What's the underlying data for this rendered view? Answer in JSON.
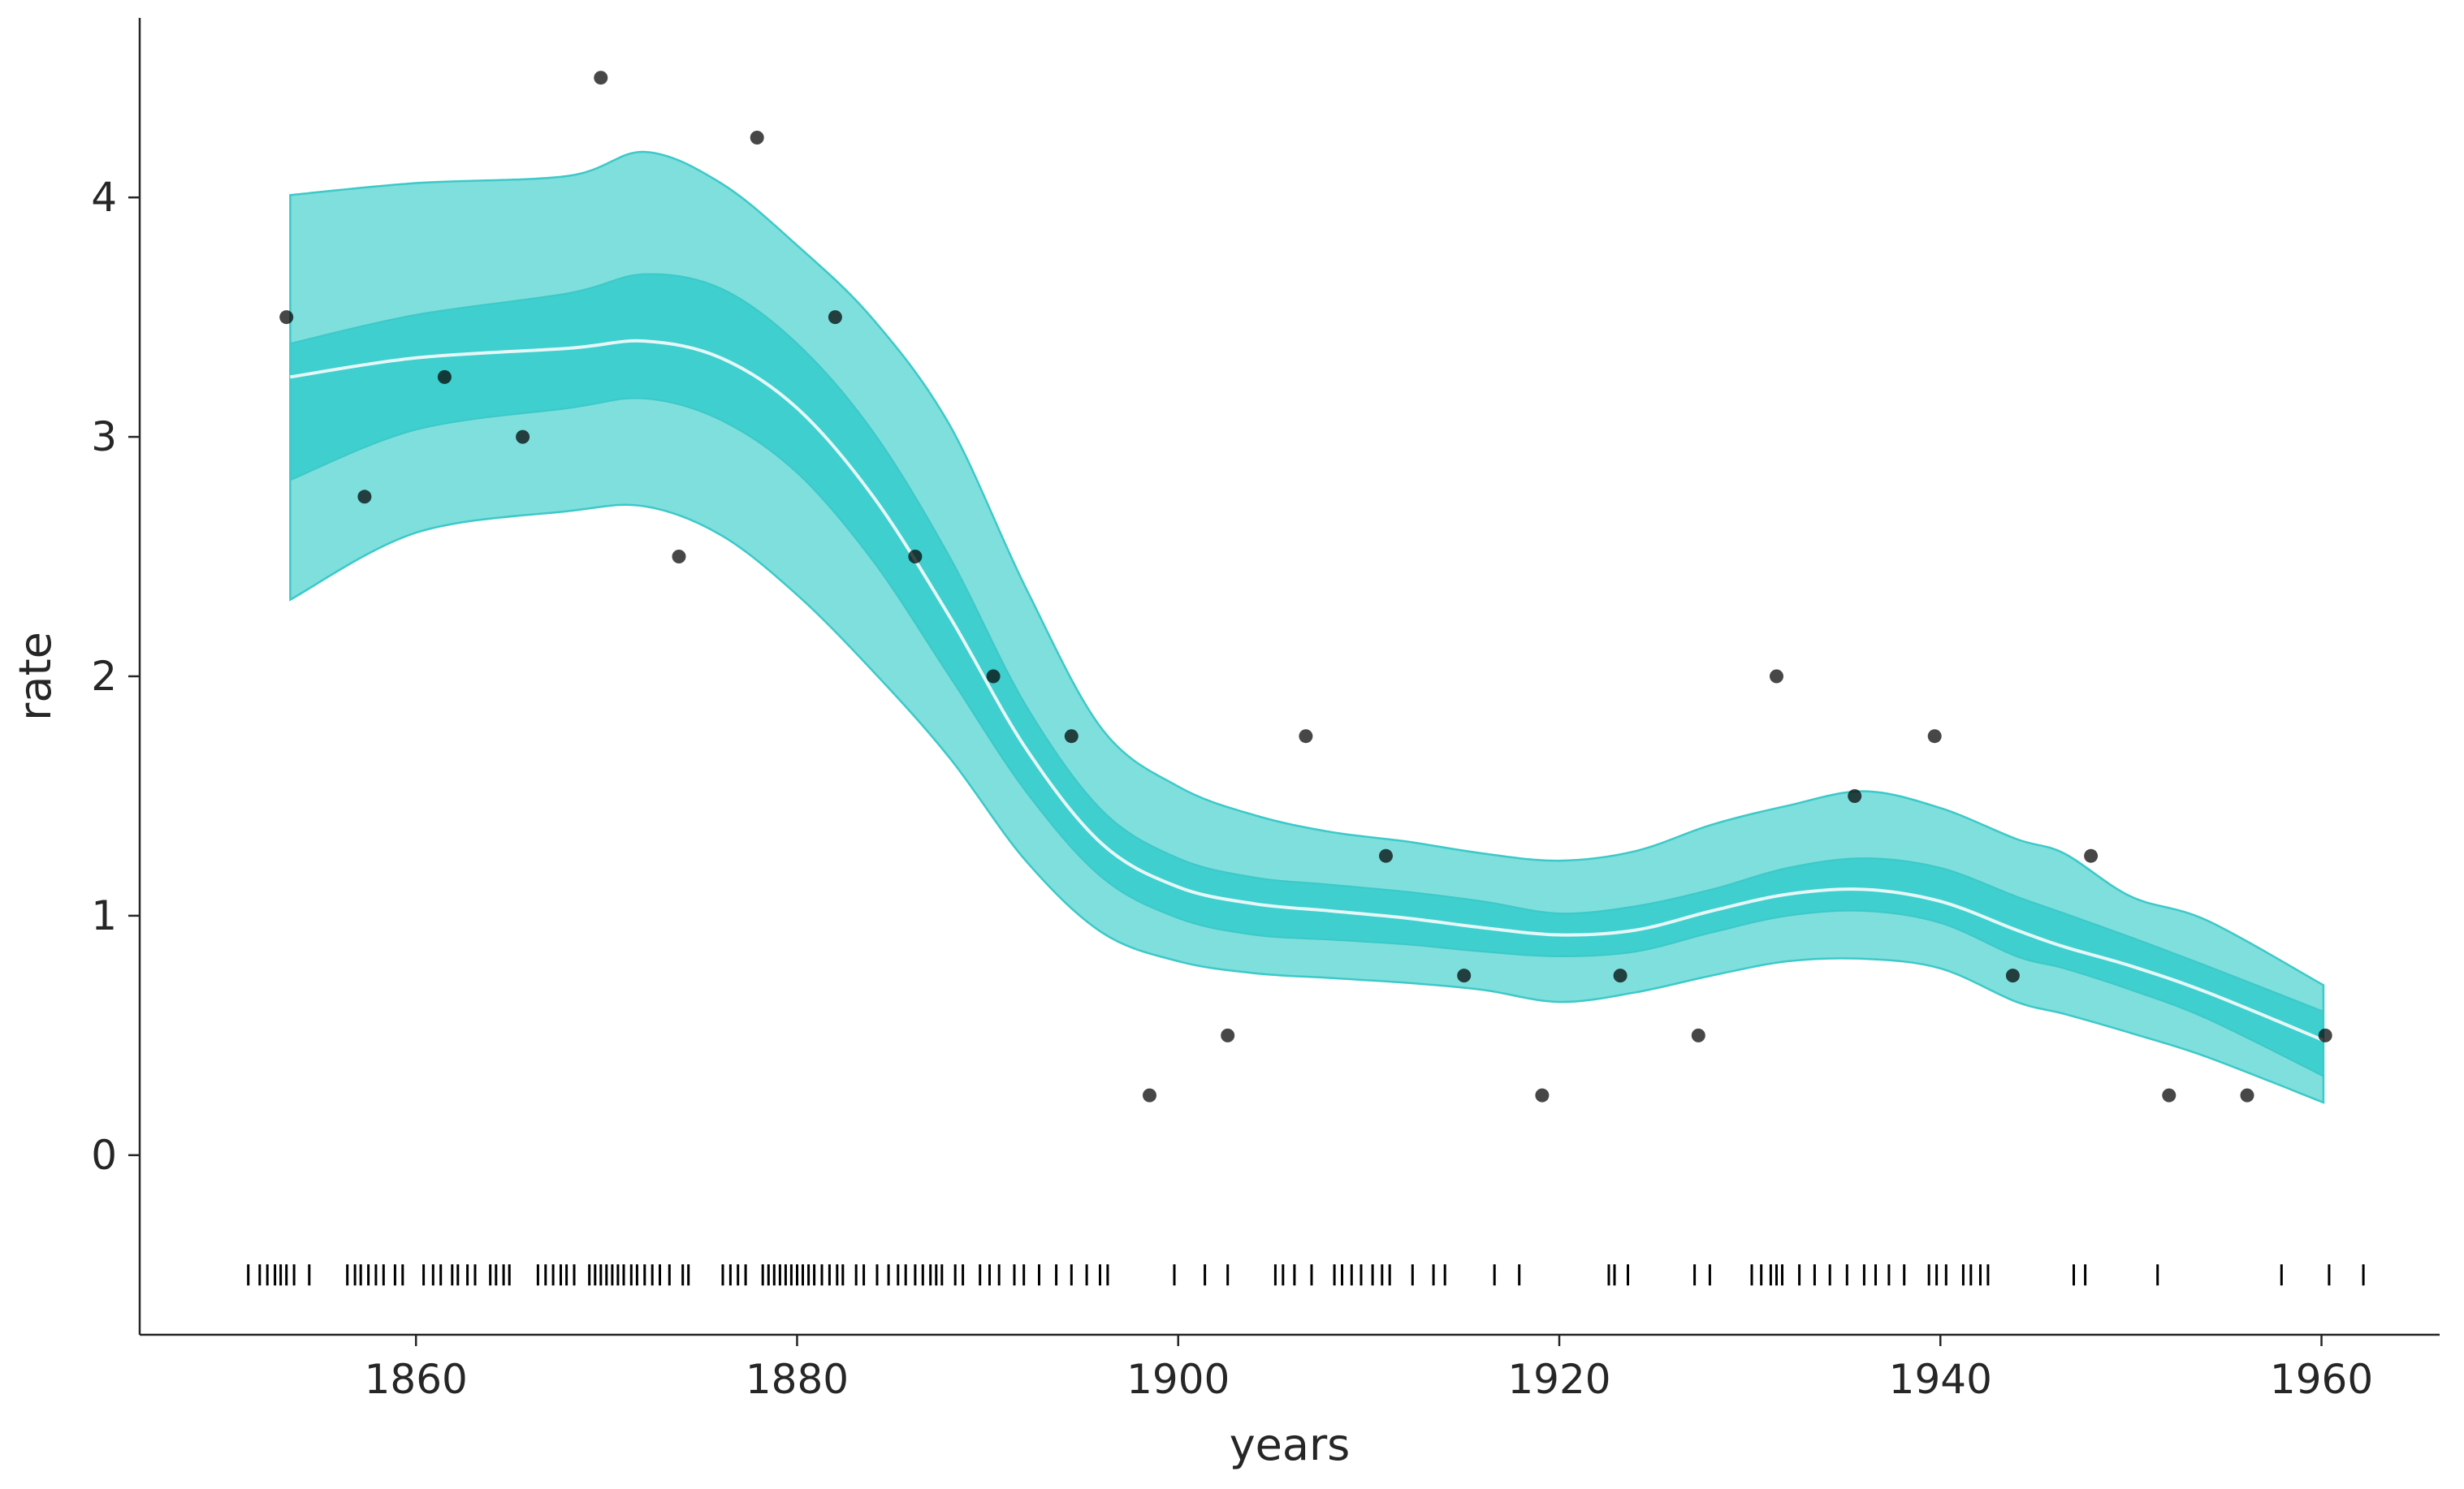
{
  "chart_data": {
    "type": "line",
    "title": "",
    "xlabel": "years",
    "ylabel": "rate",
    "xlim": [
      1845.5,
      1966.2
    ],
    "ylim": [
      -0.75,
      4.75
    ],
    "x_ticks": [
      1860,
      1880,
      1900,
      1920,
      1940,
      1960
    ],
    "y_ticks": [
      0,
      1,
      2,
      3,
      4
    ],
    "grid": false,
    "legend": "none",
    "colors": {
      "band_outer": "#7fdfdd",
      "band_inner": "#3ecfce",
      "band_edge": "#3cc9c8",
      "mean_line": "#e6f7f7",
      "points": "#000000",
      "rug": "#000000",
      "axis": "#262626"
    },
    "mean_curve": {
      "x": [
        1853.4,
        1860,
        1868,
        1872,
        1876,
        1880,
        1884,
        1888,
        1892,
        1896,
        1900,
        1904,
        1908,
        1912,
        1916,
        1920,
        1924,
        1928,
        1932,
        1936,
        1940,
        1944,
        1946.5,
        1950,
        1954,
        1960.1
      ],
      "y": [
        3.25,
        3.33,
        3.37,
        3.4,
        3.33,
        3.12,
        2.75,
        2.25,
        1.7,
        1.3,
        1.12,
        1.05,
        1.02,
        0.99,
        0.95,
        0.92,
        0.94,
        1.02,
        1.09,
        1.11,
        1.06,
        0.94,
        0.87,
        0.79,
        0.68,
        0.48
      ]
    },
    "band_50": {
      "lower": [
        2.82,
        3.03,
        3.12,
        3.16,
        3.07,
        2.85,
        2.48,
        2.0,
        1.52,
        1.16,
        0.99,
        0.92,
        0.9,
        0.88,
        0.85,
        0.83,
        0.85,
        0.93,
        1.0,
        1.02,
        0.97,
        0.83,
        0.78,
        0.69,
        0.57,
        0.33
      ],
      "upper": [
        3.39,
        3.51,
        3.6,
        3.68,
        3.62,
        3.39,
        3.02,
        2.5,
        1.88,
        1.44,
        1.24,
        1.16,
        1.13,
        1.1,
        1.06,
        1.01,
        1.04,
        1.11,
        1.2,
        1.24,
        1.2,
        1.08,
        1.01,
        0.91,
        0.79,
        0.6
      ]
    },
    "band_94": {
      "lower": [
        2.32,
        2.6,
        2.69,
        2.71,
        2.59,
        2.34,
        2.02,
        1.66,
        1.23,
        0.93,
        0.81,
        0.76,
        0.74,
        0.72,
        0.69,
        0.64,
        0.68,
        0.75,
        0.81,
        0.82,
        0.78,
        0.64,
        0.59,
        0.51,
        0.41,
        0.22
      ],
      "upper": [
        4.01,
        4.06,
        4.09,
        4.19,
        4.06,
        3.8,
        3.49,
        3.05,
        2.37,
        1.78,
        1.54,
        1.42,
        1.35,
        1.31,
        1.26,
        1.23,
        1.27,
        1.38,
        1.46,
        1.52,
        1.45,
        1.32,
        1.26,
        1.08,
        0.98,
        0.71
      ]
    },
    "observations": {
      "x": [
        1853.2,
        1857.3,
        1861.5,
        1865.6,
        1869.7,
        1873.8,
        1877.9,
        1882.0,
        1886.2,
        1890.3,
        1894.4,
        1898.5,
        1902.6,
        1906.7,
        1910.9,
        1915.0,
        1919.1,
        1923.2,
        1927.3,
        1931.4,
        1935.5,
        1939.7,
        1943.8,
        1947.9,
        1952.0,
        1956.1,
        1960.2
      ],
      "y": [
        3.5,
        2.75,
        3.25,
        3.0,
        4.5,
        2.5,
        4.25,
        3.5,
        2.5,
        2.0,
        1.75,
        0.25,
        0.5,
        1.75,
        1.25,
        0.75,
        0.25,
        0.75,
        0.5,
        2.0,
        1.5,
        1.75,
        0.75,
        1.25,
        0.25,
        0.25,
        0.5
      ]
    },
    "rug": {
      "y": -0.5,
      "x": [
        1851.2,
        1851.8,
        1852.2,
        1852.6,
        1852.9,
        1853.2,
        1853.6,
        1854.4,
        1856.4,
        1856.8,
        1857.1,
        1857.5,
        1857.9,
        1858.3,
        1858.9,
        1859.3,
        1860.4,
        1860.9,
        1861.3,
        1861.9,
        1862.2,
        1862.7,
        1863.1,
        1863.9,
        1864.2,
        1864.6,
        1864.9,
        1866.4,
        1866.8,
        1867.2,
        1867.6,
        1867.9,
        1868.3,
        1869.1,
        1869.4,
        1869.7,
        1870.0,
        1870.3,
        1870.6,
        1870.9,
        1871.3,
        1871.6,
        1872.0,
        1872.4,
        1872.8,
        1873.3,
        1874.0,
        1874.3,
        1876.1,
        1876.5,
        1876.9,
        1877.3,
        1878.2,
        1878.5,
        1878.8,
        1879.1,
        1879.4,
        1879.7,
        1880.0,
        1880.3,
        1880.6,
        1880.9,
        1881.3,
        1881.7,
        1882.1,
        1882.4,
        1883.1,
        1883.5,
        1884.2,
        1884.8,
        1885.3,
        1885.7,
        1886.2,
        1886.6,
        1887.0,
        1887.3,
        1887.6,
        1888.3,
        1888.7,
        1889.6,
        1890.1,
        1890.6,
        1891.4,
        1891.9,
        1892.7,
        1893.6,
        1894.4,
        1895.2,
        1895.9,
        1896.3,
        1899.8,
        1901.4,
        1902.6,
        1905.1,
        1905.5,
        1906.1,
        1907.0,
        1908.2,
        1908.6,
        1909.1,
        1909.6,
        1910.2,
        1910.7,
        1911.1,
        1912.3,
        1913.4,
        1914.0,
        1916.6,
        1917.9,
        1922.6,
        1922.9,
        1923.6,
        1927.1,
        1927.9,
        1930.1,
        1930.6,
        1931.1,
        1931.4,
        1931.7,
        1932.6,
        1933.4,
        1934.2,
        1935.1,
        1936.0,
        1936.6,
        1937.3,
        1938.1,
        1939.4,
        1939.8,
        1940.3,
        1941.2,
        1941.6,
        1942.1,
        1942.5,
        1947.0,
        1947.6,
        1951.4,
        1957.9,
        1960.4,
        1962.2
      ]
    }
  }
}
